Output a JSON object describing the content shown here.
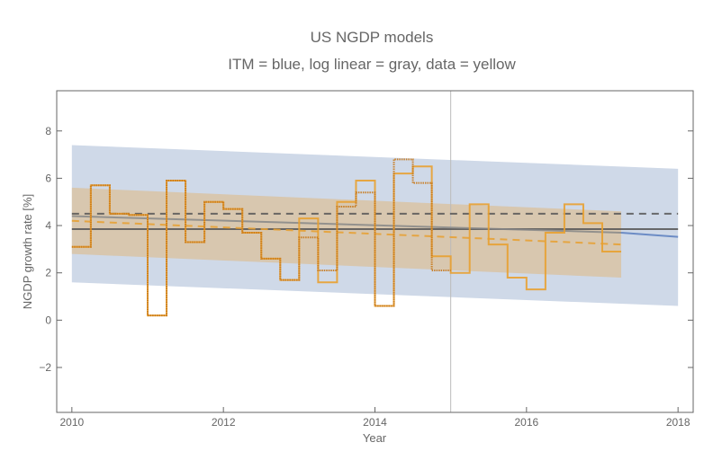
{
  "chart_data": {
    "type": "line",
    "title": "US NGDP models",
    "subtitle": "ITM = blue, log linear = gray, data = yellow",
    "xlabel": "Year",
    "ylabel": "NGDP growth rate [%]",
    "xlim": [
      2009.8,
      2018.2
    ],
    "ylim": [
      -3.9,
      9.7
    ],
    "x_ticks": [
      2010,
      2012,
      2014,
      2016,
      2018
    ],
    "y_ticks": [
      -2,
      0,
      2,
      4,
      6,
      8
    ],
    "grid": false,
    "vertical_marker": 2015,
    "colors": {
      "itm_band": "#cfd9e8",
      "itm_line": "#5b7fbf",
      "data_band": "#d8c4a8",
      "data": "#e8a030",
      "data_revised": "#c8781a",
      "loglinear": "#666666",
      "axis": "#666666"
    },
    "bands": [
      {
        "name": "ITM",
        "x": [
          2010,
          2018
        ],
        "lower": [
          1.6,
          0.6
        ],
        "upper": [
          7.4,
          6.4
        ]
      },
      {
        "name": "data",
        "x": [
          2010,
          2017.25
        ],
        "lower": [
          2.8,
          1.8
        ],
        "upper": [
          5.6,
          4.6
        ]
      }
    ],
    "lines": [
      {
        "name": "log linear mean",
        "style": "dashed",
        "color": "#555555",
        "x": [
          2010,
          2018
        ],
        "y": [
          4.5,
          4.5
        ]
      },
      {
        "name": "log linear",
        "style": "solid",
        "color": "#555555",
        "x": [
          2010,
          2018
        ],
        "y": [
          3.85,
          3.85
        ]
      },
      {
        "name": "ITM",
        "style": "solid",
        "color": "#888888",
        "x": [
          2010,
          2017.25
        ],
        "y": [
          4.4,
          3.7
        ]
      },
      {
        "name": "ITM projection",
        "style": "solid",
        "color": "#5b7fbf",
        "x": [
          2017.25,
          2018
        ],
        "y": [
          3.7,
          3.52
        ]
      },
      {
        "name": "data trend",
        "style": "dashed",
        "color": "#e8a030",
        "x": [
          2010,
          2017.25
        ],
        "y": [
          4.2,
          3.2
        ]
      }
    ],
    "step_series": [
      {
        "name": "data",
        "style": "solid",
        "start": 2010,
        "step": 0.25,
        "values": [
          3.1,
          5.7,
          4.5,
          4.45,
          0.2,
          5.9,
          3.3,
          5.0,
          4.7,
          3.7,
          2.6,
          1.7,
          4.3,
          1.6,
          5.0,
          5.9,
          0.6,
          6.2,
          6.5,
          2.7,
          2.0,
          4.9,
          3.2,
          1.8,
          1.3,
          3.7,
          4.9,
          4.1,
          2.9
        ]
      },
      {
        "name": "data earlier vintage",
        "style": "dotted",
        "start": 2010,
        "step": 0.25,
        "values": [
          3.1,
          5.7,
          4.5,
          4.45,
          0.2,
          5.9,
          3.3,
          5.0,
          4.7,
          3.7,
          2.6,
          1.7,
          3.5,
          2.1,
          4.8,
          5.4,
          0.6,
          6.8,
          5.8,
          2.1
        ]
      }
    ]
  }
}
